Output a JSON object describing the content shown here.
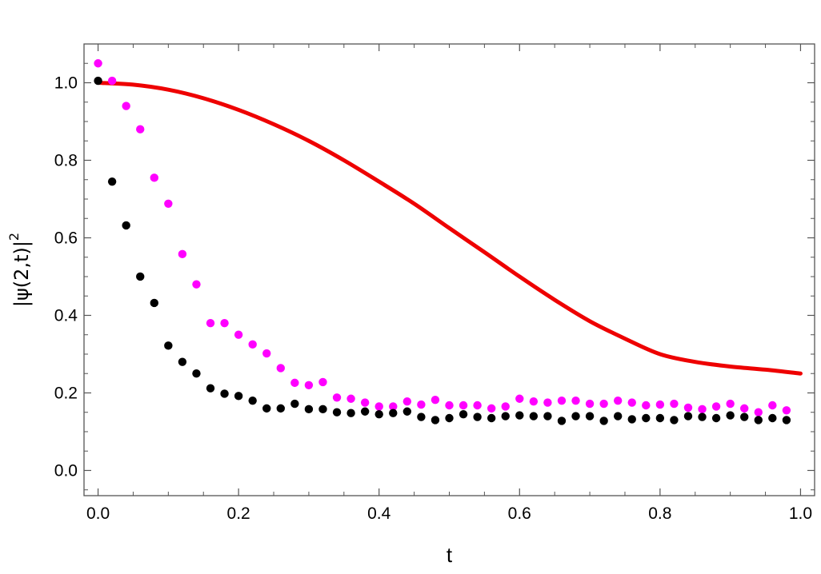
{
  "chart_data": {
    "type": "scatter",
    "title": "",
    "xlabel": "t",
    "ylabel": "|ψ(2,t)|",
    "ylabel_sup": "2",
    "xlim": [
      -0.02,
      1.02
    ],
    "ylim": [
      -0.065,
      1.1
    ],
    "x_ticks": [
      0.0,
      0.2,
      0.4,
      0.6,
      0.8,
      1.0
    ],
    "x_tick_labels": [
      "0.0",
      "0.2",
      "0.4",
      "0.6",
      "0.8",
      "1.0"
    ],
    "y_ticks": [
      0.0,
      0.2,
      0.4,
      0.6,
      0.8,
      1.0
    ],
    "y_tick_labels": [
      "0.0",
      "0.2",
      "0.4",
      "0.6",
      "0.8",
      "1.0"
    ],
    "grid": false,
    "legend": "none",
    "series": [
      {
        "kind": "line",
        "color": "#ee0000",
        "x": [
          0.0,
          0.05,
          0.1,
          0.15,
          0.2,
          0.25,
          0.3,
          0.35,
          0.4,
          0.45,
          0.5,
          0.55,
          0.6,
          0.65,
          0.7,
          0.75,
          0.8,
          0.85,
          0.9,
          0.95,
          1.0
        ],
        "y": [
          1.0,
          0.995,
          0.982,
          0.96,
          0.93,
          0.893,
          0.85,
          0.8,
          0.745,
          0.688,
          0.625,
          0.563,
          0.5,
          0.44,
          0.385,
          0.34,
          0.3,
          0.28,
          0.268,
          0.26,
          0.25
        ]
      },
      {
        "kind": "points",
        "color": "#ff00ff",
        "x": [
          0.0,
          0.02,
          0.04,
          0.06,
          0.08,
          0.1,
          0.12,
          0.14,
          0.16,
          0.18,
          0.2,
          0.22,
          0.24,
          0.26,
          0.28,
          0.3,
          0.32,
          0.34,
          0.36,
          0.38,
          0.4,
          0.42,
          0.44,
          0.46,
          0.48,
          0.5,
          0.52,
          0.54,
          0.56,
          0.58,
          0.6,
          0.62,
          0.64,
          0.66,
          0.68,
          0.7,
          0.72,
          0.74,
          0.76,
          0.78,
          0.8,
          0.82,
          0.84,
          0.86,
          0.88,
          0.9,
          0.92,
          0.94,
          0.96,
          0.98
        ],
        "y": [
          1.05,
          1.005,
          0.94,
          0.88,
          0.755,
          0.688,
          0.558,
          0.48,
          0.38,
          0.38,
          0.35,
          0.325,
          0.302,
          0.264,
          0.226,
          0.22,
          0.228,
          0.188,
          0.185,
          0.175,
          0.165,
          0.165,
          0.178,
          0.17,
          0.182,
          0.168,
          0.168,
          0.168,
          0.16,
          0.165,
          0.185,
          0.178,
          0.175,
          0.18,
          0.18,
          0.172,
          0.172,
          0.18,
          0.175,
          0.168,
          0.17,
          0.172,
          0.162,
          0.158,
          0.165,
          0.172,
          0.16,
          0.15,
          0.168,
          0.155
        ]
      },
      {
        "kind": "points",
        "color": "#000000",
        "x": [
          0.0,
          0.02,
          0.04,
          0.06,
          0.08,
          0.1,
          0.12,
          0.14,
          0.16,
          0.18,
          0.2,
          0.22,
          0.24,
          0.26,
          0.28,
          0.3,
          0.32,
          0.34,
          0.36,
          0.38,
          0.4,
          0.42,
          0.44,
          0.46,
          0.48,
          0.5,
          0.52,
          0.54,
          0.56,
          0.58,
          0.6,
          0.62,
          0.64,
          0.66,
          0.68,
          0.7,
          0.72,
          0.74,
          0.76,
          0.78,
          0.8,
          0.82,
          0.84,
          0.86,
          0.88,
          0.9,
          0.92,
          0.94,
          0.96,
          0.98
        ],
        "y": [
          1.005,
          0.745,
          0.632,
          0.5,
          0.432,
          0.322,
          0.28,
          0.25,
          0.212,
          0.198,
          0.192,
          0.18,
          0.16,
          0.16,
          0.172,
          0.158,
          0.158,
          0.15,
          0.148,
          0.152,
          0.145,
          0.148,
          0.152,
          0.138,
          0.13,
          0.135,
          0.145,
          0.138,
          0.135,
          0.14,
          0.142,
          0.14,
          0.14,
          0.128,
          0.14,
          0.14,
          0.128,
          0.14,
          0.132,
          0.135,
          0.135,
          0.13,
          0.14,
          0.138,
          0.135,
          0.142,
          0.138,
          0.13,
          0.135,
          0.13
        ]
      }
    ]
  }
}
